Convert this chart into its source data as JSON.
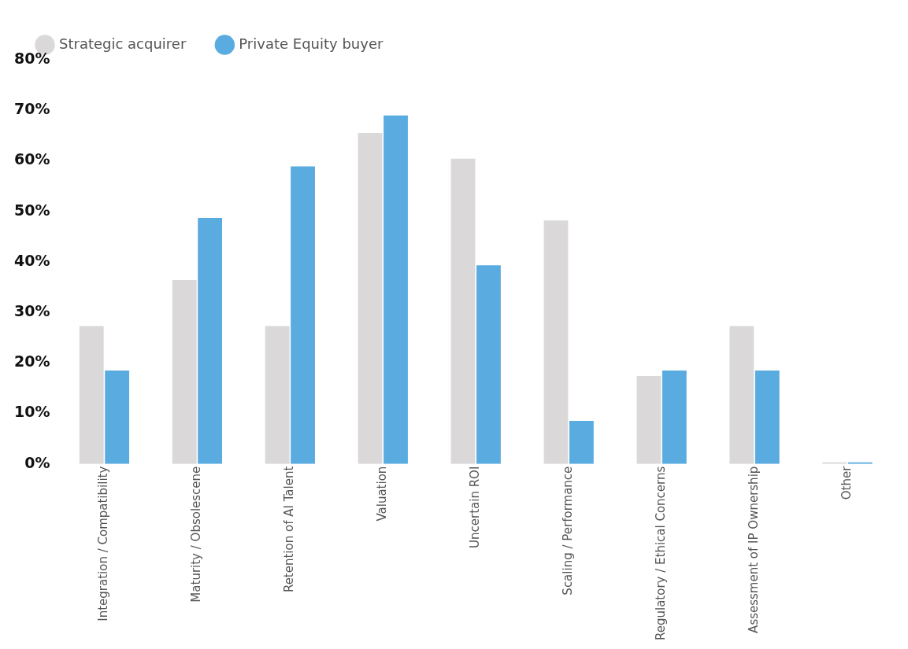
{
  "chart_data": {
    "type": "bar",
    "categories": [
      "Integration / Compatibility",
      "Maturity / Obsolescene",
      "Retention of AI Talent",
      "Valuation",
      "Uncertain ROI",
      "Scaling / Performance",
      "Regulatory / Ethical Concerns",
      "Assessment of IP Ownership",
      "Other"
    ],
    "series": [
      {
        "name": "Strategic acquirer",
        "color": "#dad8d9",
        "values": [
          27.3,
          36.4,
          27.3,
          65.5,
          60.4,
          48.2,
          17.4,
          27.3,
          0
        ]
      },
      {
        "name": "Private Equity buyer",
        "color": "#5aabe0",
        "values": [
          18.5,
          48.7,
          58.9,
          69.0,
          39.3,
          8.5,
          18.5,
          18.5,
          0
        ]
      }
    ],
    "ylim": [
      0,
      80
    ],
    "yticks": [
      {
        "value": 0,
        "label": "0%"
      },
      {
        "value": 10,
        "label": "10%"
      },
      {
        "value": 20,
        "label": "20%"
      },
      {
        "value": 30,
        "label": "30%"
      },
      {
        "value": 40,
        "label": "40%"
      },
      {
        "value": 50,
        "label": "50%"
      },
      {
        "value": 60,
        "label": "60%"
      },
      {
        "value": 70,
        "label": "70%"
      },
      {
        "value": 80,
        "label": "80%"
      }
    ],
    "grid": false,
    "legend": "top left"
  }
}
